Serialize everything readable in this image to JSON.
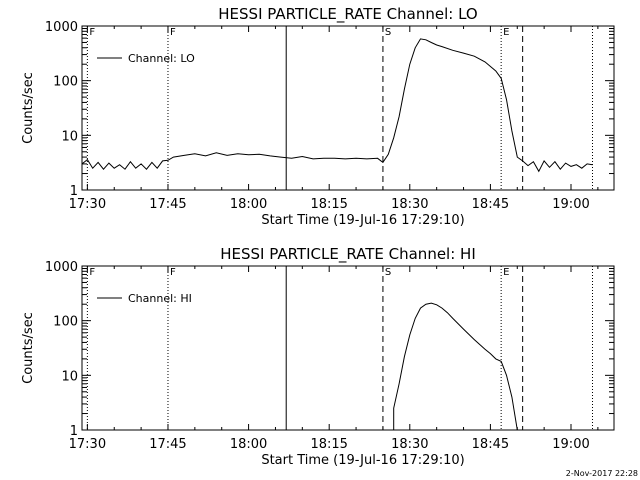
{
  "footer": {
    "date_stamp": "2-Nov-2017 22:28"
  },
  "chart_data": [
    {
      "type": "line",
      "title": "HESSI PARTICLE_RATE Channel: LO",
      "xlabel": "Start Time (19-Jul-16 17:29:10)",
      "ylabel": "Counts/sec",
      "yscale": "log",
      "ylim": [
        1,
        1000
      ],
      "xlim": [
        "17:29",
        "19:08"
      ],
      "x_tick_labels": [
        "17:30",
        "17:45",
        "18:00",
        "18:15",
        "18:30",
        "18:45",
        "19:00"
      ],
      "y_tick_labels": [
        "1",
        "10",
        "100",
        "1000"
      ],
      "legend": {
        "position": "top-left",
        "entries": [
          "Channel: LO"
        ]
      },
      "markers": [
        {
          "time": "17:30",
          "label": "F",
          "style": "dotted"
        },
        {
          "time": "17:45",
          "label": "F",
          "style": "dotted"
        },
        {
          "time": "18:07",
          "label": "",
          "style": "solid"
        },
        {
          "time": "18:25",
          "label": "S",
          "style": "dashed"
        },
        {
          "time": "18:47",
          "label": "E",
          "style": "dotted"
        },
        {
          "time": "18:51",
          "label": "",
          "style": "dashed"
        },
        {
          "time": "19:04",
          "label": "",
          "style": "dotted"
        }
      ],
      "series": [
        {
          "name": "Channel: LO",
          "x": [
            "17:29",
            "17:30",
            "17:31",
            "17:32",
            "17:33",
            "17:34",
            "17:35",
            "17:36",
            "17:37",
            "17:38",
            "17:39",
            "17:40",
            "17:41",
            "17:42",
            "17:43",
            "17:44",
            "17:45",
            "17:46",
            "17:48",
            "17:50",
            "17:52",
            "17:54",
            "17:56",
            "17:58",
            "18:00",
            "18:02",
            "18:04",
            "18:06",
            "18:08",
            "18:10",
            "18:12",
            "18:14",
            "18:16",
            "18:18",
            "18:20",
            "18:22",
            "18:24",
            "18:25",
            "18:26",
            "18:27",
            "18:28",
            "18:29",
            "18:30",
            "18:31",
            "18:32",
            "18:33",
            "18:34",
            "18:35",
            "18:36",
            "18:38",
            "18:40",
            "18:42",
            "18:44",
            "18:46",
            "18:47",
            "18:48",
            "18:49",
            "18:50",
            "18:51",
            "18:52",
            "18:53",
            "18:54",
            "18:55",
            "18:56",
            "18:57",
            "18:58",
            "18:59",
            "19:00",
            "19:01",
            "19:02",
            "19:03",
            "19:04"
          ],
          "y": [
            3,
            3.6,
            2.5,
            3.2,
            2.4,
            3.1,
            2.5,
            2.9,
            2.4,
            3.3,
            2.5,
            3,
            2.4,
            3.2,
            2.5,
            3.4,
            3.5,
            4,
            4.3,
            4.6,
            4.2,
            4.8,
            4.3,
            4.6,
            4.4,
            4.5,
            4.2,
            4,
            3.8,
            4.1,
            3.7,
            3.8,
            3.8,
            3.7,
            3.8,
            3.7,
            3.8,
            3.2,
            4.5,
            9,
            22,
            70,
            200,
            400,
            580,
            560,
            500,
            450,
            420,
            360,
            320,
            280,
            220,
            150,
            110,
            45,
            12,
            4,
            3.4,
            2.8,
            3.3,
            2.2,
            3.4,
            2.6,
            3.3,
            2.4,
            3.1,
            2.7,
            2.9,
            2.5,
            3,
            2.9
          ]
        }
      ]
    },
    {
      "type": "line",
      "title": "HESSI PARTICLE_RATE Channel: HI",
      "xlabel": "Start Time (19-Jul-16 17:29:10)",
      "ylabel": "Counts/sec",
      "yscale": "log",
      "ylim": [
        1,
        1000
      ],
      "xlim": [
        "17:29",
        "19:08"
      ],
      "x_tick_labels": [
        "17:30",
        "17:45",
        "18:00",
        "18:15",
        "18:30",
        "18:45",
        "19:00"
      ],
      "y_tick_labels": [
        "1",
        "10",
        "100",
        "1000"
      ],
      "legend": {
        "position": "top-left",
        "entries": [
          "Channel: HI"
        ]
      },
      "markers": [
        {
          "time": "17:30",
          "label": "F",
          "style": "dotted"
        },
        {
          "time": "17:45",
          "label": "F",
          "style": "dotted"
        },
        {
          "time": "18:07",
          "label": "",
          "style": "solid"
        },
        {
          "time": "18:25",
          "label": "S",
          "style": "dashed"
        },
        {
          "time": "18:47",
          "label": "E",
          "style": "dotted"
        },
        {
          "time": "18:51",
          "label": "",
          "style": "dashed"
        },
        {
          "time": "19:04",
          "label": "",
          "style": "dotted"
        }
      ],
      "series": [
        {
          "name": "Channel: HI",
          "x": [
            "18:27",
            "18:27",
            "18:28",
            "18:29",
            "18:30",
            "18:31",
            "18:32",
            "18:33",
            "18:34",
            "18:35",
            "18:36",
            "18:37",
            "18:38",
            "18:40",
            "18:42",
            "18:44",
            "18:45",
            "18:46",
            "18:47",
            "18:48",
            "18:49",
            "18:50"
          ],
          "y": [
            1,
            2.5,
            7,
            22,
            55,
            110,
            170,
            200,
            210,
            195,
            170,
            140,
            110,
            70,
            45,
            30,
            25,
            20,
            18,
            10,
            4,
            1
          ]
        }
      ]
    }
  ]
}
